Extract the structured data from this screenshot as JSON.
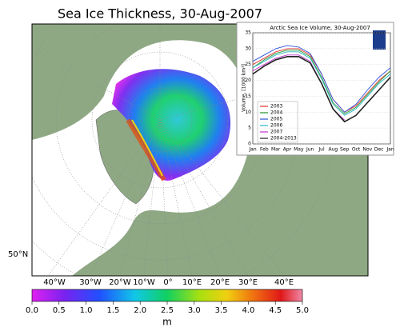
{
  "map": {
    "title": "Sea Ice Thickness, 30-Aug-2007",
    "lon_labels": [
      "40°W",
      "30°W",
      "20°W",
      "10°W",
      "0°",
      "10°E",
      "20°E",
      "30°E",
      "40°E"
    ],
    "lat_label": "50°N"
  },
  "colorbar": {
    "lim": [
      0,
      5
    ],
    "label": "m",
    "ticks": [
      {
        "value": 0,
        "label": "0.0"
      },
      0.5,
      {
        "value": 1,
        "label": "1.0"
      },
      1.5,
      {
        "value": 2,
        "label": "2.0"
      },
      2.5,
      {
        "value": 3,
        "label": "3.0"
      },
      3.5,
      {
        "value": 4,
        "label": "4.0"
      },
      4.5,
      {
        "value": 5,
        "label": "5.0"
      }
    ]
  },
  "chart_data": {
    "type": "line",
    "title": "Arctic Sea Ice Volume, 30-Aug-2007",
    "y_label": "Volume, [1000 km³]",
    "categories": [
      "Jan",
      "Feb",
      "Mar",
      "Apr",
      "May",
      "Jun",
      "Jul",
      "Aug",
      "Sep",
      "Oct",
      "Nov",
      "Dec",
      "Jan"
    ],
    "ylim": [
      0,
      35
    ],
    "yticks": [
      0,
      5,
      10,
      15,
      20,
      25,
      30,
      35
    ],
    "series": [
      {
        "name": "2003",
        "color": "#e8302a",
        "values": [
          25,
          27,
          29,
          30,
          30,
          28,
          22,
          14,
          10,
          12,
          16,
          20,
          23
        ]
      },
      {
        "name": "2004",
        "color": "#2a9a3a",
        "values": [
          24,
          26.5,
          28.5,
          29.5,
          29.5,
          27.5,
          21,
          13,
          9.5,
          11.5,
          15.5,
          19.5,
          23
        ]
      },
      {
        "name": "2005",
        "color": "#2d4fd8",
        "values": [
          26,
          28,
          30,
          31,
          30.5,
          28.5,
          22,
          14,
          10,
          12.5,
          17,
          21,
          24
        ]
      },
      {
        "name": "2006",
        "color": "#27b8c0",
        "values": [
          24,
          26,
          28,
          29,
          29,
          27,
          20.5,
          12.5,
          9,
          11,
          15,
          19,
          22
        ]
      },
      {
        "name": "2007",
        "color": "#c032c8",
        "values": [
          23,
          25,
          27,
          28,
          28,
          26,
          19,
          11,
          7.5,
          null,
          null,
          null,
          null
        ]
      },
      {
        "name": "2004-2013",
        "color": "#222222",
        "values": [
          22,
          24.5,
          26.5,
          27.5,
          27.5,
          25.5,
          19,
          11,
          7,
          9,
          13,
          17,
          21
        ]
      }
    ]
  }
}
